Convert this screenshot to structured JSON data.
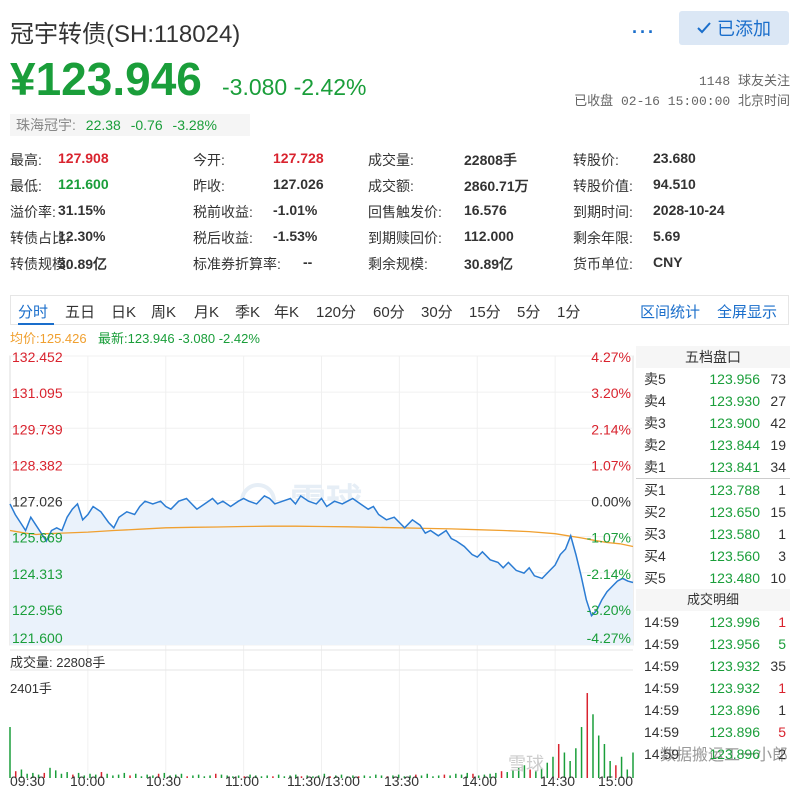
{
  "header": {
    "title": "冠宇转债(SH:118024)",
    "follow_label": "已添加",
    "more_label": "···",
    "price": "¥123.946",
    "change": "-3.080",
    "change_pct": "-2.42%",
    "followers": "1148 球友关注",
    "status": "已收盘 02-16 15:00:00 北京时间"
  },
  "stock": {
    "name": "珠海冠宇:",
    "price": "22.38",
    "change": "-0.76",
    "change_pct": "-3.28%"
  },
  "quote": [
    [
      {
        "label": "最高:",
        "value": "127.908",
        "color": "red"
      },
      {
        "label": "今开:",
        "value": "127.728",
        "color": "red"
      },
      {
        "label": "成交量:",
        "value": "22808手",
        "color": "none"
      },
      {
        "label": "转股价:",
        "value": "23.680",
        "color": "none"
      }
    ],
    [
      {
        "label": "最低:",
        "value": "121.600",
        "color": "grn"
      },
      {
        "label": "昨收:",
        "value": "127.026",
        "color": "none"
      },
      {
        "label": "成交额:",
        "value": "2860.71万",
        "color": "none"
      },
      {
        "label": "转股价值:",
        "value": "94.510",
        "color": "none"
      }
    ],
    [
      {
        "label": "溢价率:",
        "value": "31.15%",
        "color": "none"
      },
      {
        "label": "税前收益:",
        "value": "-1.01%",
        "color": "none"
      },
      {
        "label": "回售触发价:",
        "value": "16.576",
        "color": "none"
      },
      {
        "label": "到期时间:",
        "value": "2028-10-24",
        "color": "none"
      }
    ],
    [
      {
        "label": "转债占比:",
        "value": "12.30%",
        "color": "none"
      },
      {
        "label": "税后收益:",
        "value": "-1.53%",
        "color": "none"
      },
      {
        "label": "到期赎回价:",
        "value": "112.000",
        "color": "none"
      },
      {
        "label": "剩余年限:",
        "value": "5.69",
        "color": "none"
      }
    ],
    [
      {
        "label": "转债规模:",
        "value": "30.89亿",
        "color": "none"
      },
      {
        "label": "标准券折算率:",
        "value": "--",
        "color": "none"
      },
      {
        "label": "剩余规模:",
        "value": "30.89亿",
        "color": "none"
      },
      {
        "label": "货币单位:",
        "value": "CNY",
        "color": "none"
      }
    ]
  ],
  "tabs": [
    "分时",
    "五日",
    "日K",
    "周K",
    "月K",
    "季K",
    "年K",
    "120分",
    "60分",
    "30分",
    "15分",
    "5分",
    "1分"
  ],
  "tab_links": [
    "区间统计",
    "全屏显示"
  ],
  "legend": {
    "avg": "均价:125.426",
    "latest": "最新:123.946 -3.080 -2.42%"
  },
  "chart_data": {
    "type": "line",
    "y_left_labels": [
      "132.452",
      "131.095",
      "129.739",
      "128.382",
      "127.026",
      "125.669",
      "124.313",
      "122.956",
      "121.600"
    ],
    "y_right_labels": [
      "4.27%",
      "3.20%",
      "2.14%",
      "1.07%",
      "0.00%",
      "-1.07%",
      "-2.14%",
      "-3.20%",
      "-4.27%"
    ],
    "ylim": [
      121.6,
      132.452
    ],
    "x_labels": [
      "09:30",
      "10:00",
      "10:30",
      "11:00",
      "11:30/13:00",
      "13:30",
      "14:00",
      "14:30",
      "15:00"
    ],
    "volume_label": "成交量: 22808手",
    "volume_max_label": "2401手",
    "watermark": "雪球",
    "series": [
      {
        "name": "均价",
        "x": [
          0,
          3,
          6,
          10,
          14,
          20,
          30,
          40,
          50,
          60,
          70,
          80,
          90,
          100,
          110,
          120,
          130,
          140,
          150,
          160,
          170,
          180,
          190,
          200,
          210,
          215,
          220,
          225,
          230,
          235,
          240
        ],
        "values": [
          125.9,
          125.85,
          125.8,
          125.75,
          125.78,
          125.8,
          125.84,
          125.9,
          125.95,
          126.0,
          126.02,
          126.03,
          126.05,
          126.06,
          126.06,
          126.05,
          126.04,
          126.02,
          126.0,
          125.98,
          125.96,
          125.93,
          125.9,
          125.86,
          125.78,
          125.7,
          125.62,
          125.53,
          125.45,
          125.4,
          125.3
        ]
      },
      {
        "name": "最新",
        "x": [
          0,
          2,
          4,
          6,
          8,
          10,
          12,
          14,
          16,
          18,
          20,
          22,
          24,
          26,
          28,
          30,
          32,
          35,
          38,
          40,
          42,
          45,
          48,
          50,
          52,
          55,
          58,
          60,
          62,
          65,
          68,
          70,
          72,
          75,
          78,
          80,
          82,
          85,
          88,
          90,
          92,
          95,
          98,
          100,
          102,
          105,
          108,
          110,
          112,
          115,
          118,
          120,
          122,
          125,
          128,
          130,
          132,
          135,
          138,
          140,
          142,
          145,
          148,
          150,
          152,
          155,
          158,
          160,
          162,
          165,
          168,
          170,
          172,
          175,
          178,
          180,
          182,
          185,
          188,
          190,
          192,
          195,
          198,
          200,
          202,
          205,
          208,
          210,
          212,
          214,
          216,
          218,
          220,
          222,
          224,
          226,
          228,
          230,
          232,
          234,
          236,
          238,
          240
        ],
        "values": [
          126.9,
          126.5,
          126.2,
          125.9,
          126.4,
          126.1,
          125.8,
          125.5,
          125.9,
          126.0,
          125.9,
          126.4,
          126.7,
          126.9,
          126.3,
          126.5,
          126.8,
          126.6,
          126.2,
          126.0,
          126.4,
          126.6,
          126.5,
          126.8,
          127.0,
          126.9,
          127.0,
          126.8,
          126.7,
          127.0,
          127.1,
          126.9,
          126.7,
          126.9,
          127.1,
          126.9,
          127.0,
          126.8,
          127.0,
          127.1,
          127.0,
          126.9,
          127.2,
          127.1,
          126.9,
          127.0,
          127.1,
          126.9,
          127.2,
          127.0,
          126.9,
          127.1,
          126.8,
          127.0,
          126.9,
          127.0,
          127.1,
          126.9,
          126.7,
          126.8,
          126.5,
          126.3,
          126.4,
          126.2,
          126.0,
          126.3,
          126.1,
          125.8,
          125.9,
          125.7,
          125.9,
          125.6,
          125.5,
          125.3,
          125.0,
          124.9,
          125.1,
          124.8,
          124.7,
          124.5,
          124.7,
          124.4,
          124.3,
          124.5,
          124.2,
          124.1,
          124.4,
          124.6,
          125.0,
          125.2,
          125.7,
          125.0,
          124.2,
          123.3,
          122.7,
          122.9,
          123.3,
          123.6,
          123.8,
          124.0,
          124.1,
          124.0,
          123.946
        ]
      }
    ],
    "volume": [
      60,
      8,
      10,
      5,
      6,
      4,
      6,
      12,
      9,
      5,
      7,
      4,
      6,
      3,
      5,
      4,
      7,
      5,
      3,
      4,
      6,
      3,
      5,
      2,
      4,
      3,
      5,
      6,
      3,
      4,
      5,
      2,
      3,
      4,
      2,
      3,
      5,
      4,
      3,
      2,
      3,
      2,
      4,
      3,
      2,
      3,
      2,
      4,
      2,
      3,
      4,
      2,
      3,
      2,
      3,
      5,
      2,
      3,
      4,
      2,
      3,
      2,
      3,
      2,
      4,
      3,
      2,
      3,
      4,
      2,
      3,
      4,
      3,
      5,
      2,
      3,
      4,
      3,
      5,
      4,
      6,
      5,
      3,
      4,
      5,
      6,
      8,
      7,
      9,
      12,
      15,
      10,
      8,
      12,
      18,
      25,
      40,
      30,
      20,
      35,
      60,
      100,
      75,
      50,
      40,
      20,
      15,
      25,
      10,
      30
    ],
    "volume_ylim": [
      0,
      2401
    ]
  },
  "orderbook": {
    "title": "五档盘口",
    "asks": [
      [
        "卖5",
        "123.956",
        "73"
      ],
      [
        "卖4",
        "123.930",
        "27"
      ],
      [
        "卖3",
        "123.900",
        "42"
      ],
      [
        "卖2",
        "123.844",
        "19"
      ],
      [
        "卖1",
        "123.841",
        "34"
      ]
    ],
    "bids": [
      [
        "买1",
        "123.788",
        "1"
      ],
      [
        "买2",
        "123.650",
        "15"
      ],
      [
        "买3",
        "123.580",
        "1"
      ],
      [
        "买4",
        "123.560",
        "3"
      ],
      [
        "买5",
        "123.480",
        "10"
      ]
    ],
    "trades_title": "成交明细",
    "trades": [
      [
        "14:59",
        "123.996",
        "1",
        "red"
      ],
      [
        "14:59",
        "123.956",
        "5",
        "grn"
      ],
      [
        "14:59",
        "123.932",
        "35",
        "none"
      ],
      [
        "14:59",
        "123.932",
        "1",
        "red"
      ],
      [
        "14:59",
        "123.896",
        "1",
        "none"
      ],
      [
        "14:59",
        "123.896",
        "5",
        "red"
      ],
      [
        "14:59",
        "123.896",
        "2",
        "none"
      ]
    ]
  },
  "watermark2": "数据搬运工一小郎",
  "colors": {
    "up": "#d9232e",
    "down": "#1a9e3a",
    "accent": "#1a6ecb",
    "line": "#2b7cd3",
    "avg": "#f0a030"
  }
}
